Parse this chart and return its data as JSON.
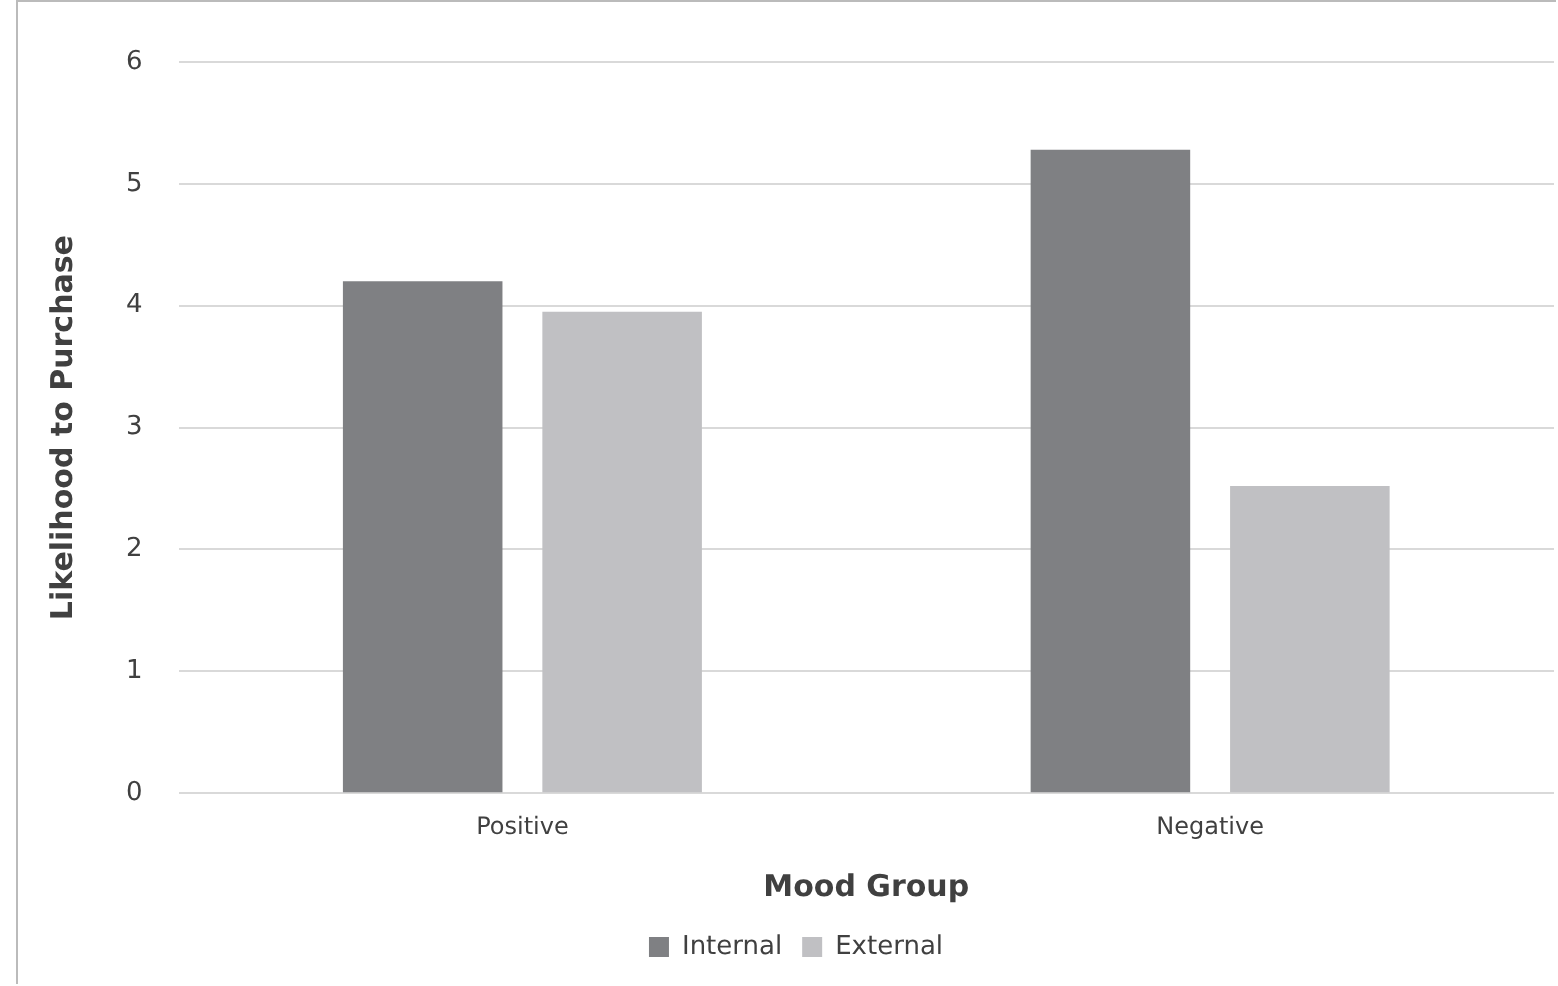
{
  "chart_data": {
    "type": "bar",
    "xlabel": "Mood Group",
    "ylabel": "Likelihood to Purchase",
    "categories": [
      "Positive",
      "Negative"
    ],
    "series": [
      {
        "name": "Internal",
        "color": "#7f8083",
        "values": [
          4.2,
          5.28
        ]
      },
      {
        "name": "External",
        "color": "#c0c0c3",
        "values": [
          3.95,
          2.52
        ]
      }
    ],
    "ylim": [
      0,
      6
    ],
    "yticks": [
      0,
      1,
      2,
      3,
      4,
      5,
      6
    ],
    "grid": "y",
    "legend": "bottom"
  }
}
